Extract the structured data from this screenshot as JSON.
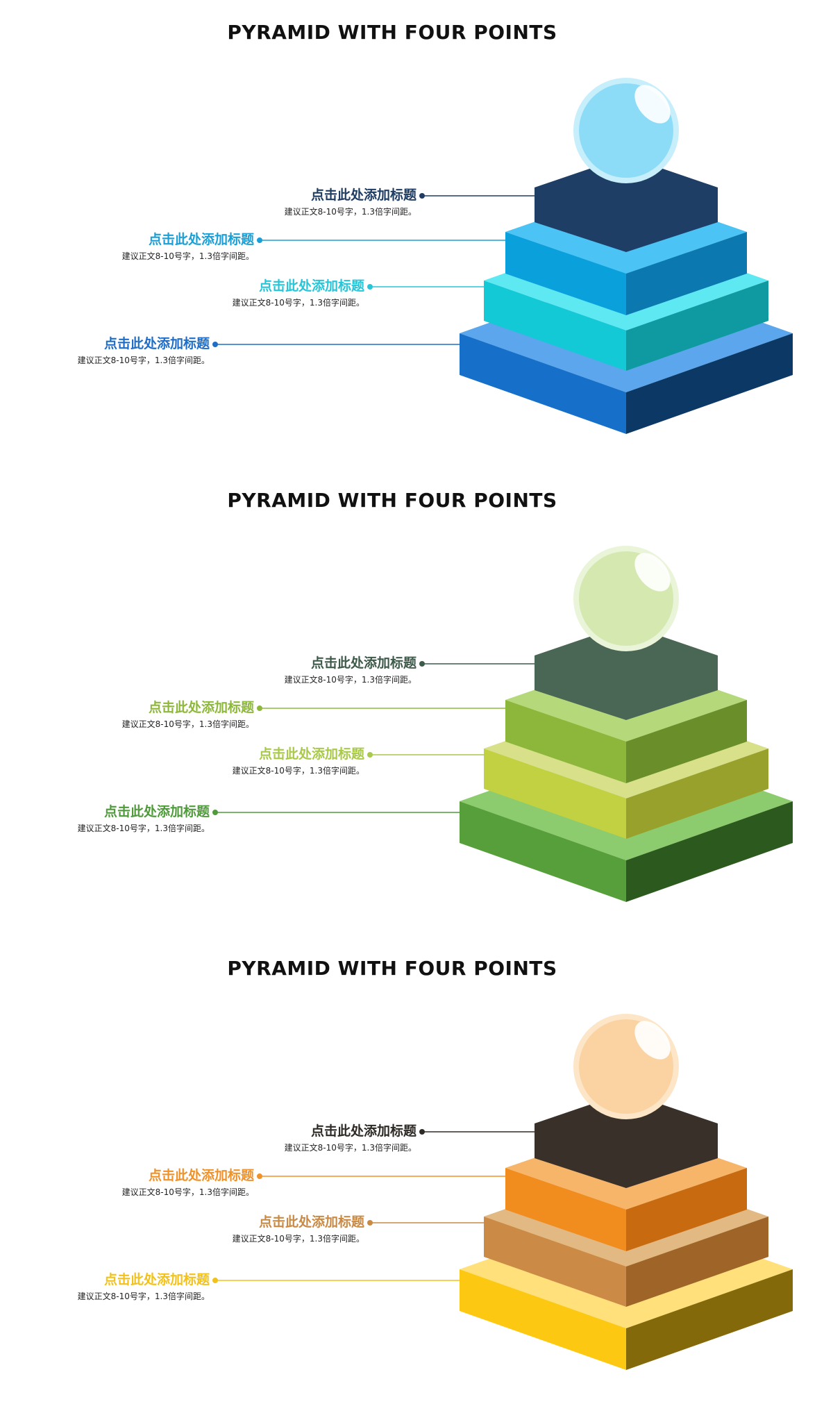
{
  "panels": [
    {
      "title": "PYRAMID WITH FOUR POINTS",
      "items": [
        {
          "heading": "点击此处添加标题",
          "body": "建议正文8-10号字，1.3倍字间距。",
          "color": "#1f3d63"
        },
        {
          "heading": "点击此处添加标题",
          "body": "建议正文8-10号字，1.3倍字间距。",
          "color": "#1a9fd6"
        },
        {
          "heading": "点击此处添加标题",
          "body": "建议正文8-10号字，1.3倍字间距。",
          "color": "#26c6d8"
        },
        {
          "heading": "点击此处添加标题",
          "body": "建议正文8-10号字，1.3倍字间距。",
          "color": "#1e6ec8"
        }
      ],
      "colors": {
        "ball": "#8ddcf7",
        "ball_ring": "#c7eefb",
        "l1_top": "#1e3e66",
        "l1_left": "#1e3e66",
        "l1_right": "#1e3e66",
        "l2_top": "#4cc3f5",
        "l2_left": "#0aa0dc",
        "l2_right": "#0b78b0",
        "l3_top": "#5ee8f2",
        "l3_left": "#13c9d6",
        "l3_right": "#0e9aa0",
        "l4_top": "#5ba6ec",
        "l4_left": "#1670c9",
        "l4_right": "#0c3866"
      }
    },
    {
      "title": "PYRAMID WITH FOUR POINTS",
      "items": [
        {
          "heading": "点击此处添加标题",
          "body": "建议正文8-10号字，1.3倍字间距。",
          "color": "#3d5a4a"
        },
        {
          "heading": "点击此处添加标题",
          "body": "建议正文8-10号字，1.3倍字间距。",
          "color": "#8db83a"
        },
        {
          "heading": "点击此处添加标题",
          "body": "建议正文8-10号字，1.3倍字间距。",
          "color": "#a9c94a"
        },
        {
          "heading": "点击此处添加标题",
          "body": "建议正文8-10号字，1.3倍字间距。",
          "color": "#4f9a3a"
        }
      ],
      "colors": {
        "ball": "#d4e8b0",
        "ball_ring": "#e9f4d8",
        "l1_top": "#4a6654",
        "l1_left": "#4a6654",
        "l1_right": "#4a6654",
        "l2_top": "#b5d97a",
        "l2_left": "#8cb73a",
        "l2_right": "#6a8f2a",
        "l3_top": "#d9e08a",
        "l3_left": "#c2d142",
        "l3_right": "#97a12c",
        "l4_top": "#8ccc6e",
        "l4_left": "#579f3a",
        "l4_right": "#2c5a1e"
      }
    },
    {
      "title": "PYRAMID WITH FOUR POINTS",
      "items": [
        {
          "heading": "点击此处添加标题",
          "body": "建议正文8-10号字，1.3倍字间距。",
          "color": "#2e2a26"
        },
        {
          "heading": "点击此处添加标题",
          "body": "建议正文8-10号字，1.3倍字间距。",
          "color": "#f0922a"
        },
        {
          "heading": "点击此处添加标题",
          "body": "建议正文8-10号字，1.3倍字间距。",
          "color": "#c98a45"
        },
        {
          "heading": "点击此处添加标题",
          "body": "建议正文8-10号字，1.3倍字间距。",
          "color": "#f2c21b"
        }
      ],
      "colors": {
        "ball": "#fbd3a2",
        "ball_ring": "#fde6c8",
        "l1_top": "#3a302a",
        "l1_left": "#3a302a",
        "l1_right": "#3a302a",
        "l2_top": "#f7b56a",
        "l2_left": "#f18c1f",
        "l2_right": "#c86a10",
        "l3_top": "#e2b883",
        "l3_left": "#cb8a45",
        "l3_right": "#9e6428",
        "l4_top": "#ffe07a",
        "l4_left": "#fcc812",
        "l4_right": "#84690a"
      }
    }
  ]
}
